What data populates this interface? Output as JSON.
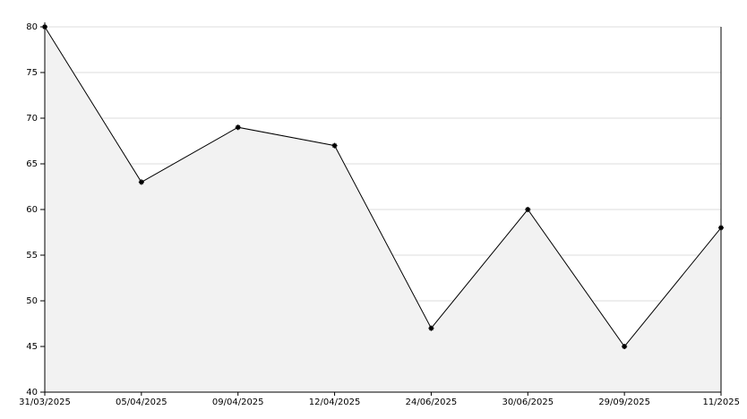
{
  "chart_data": {
    "type": "area",
    "categories": [
      "31/03/2025",
      "05/04/2025",
      "09/04/2025",
      "12/04/2025",
      "24/06/2025",
      "30/06/2025",
      "29/09/2025",
      "11/2025"
    ],
    "values": [
      80,
      63,
      69,
      67,
      47,
      60,
      45,
      58
    ],
    "color": "#000000",
    "fill": "#f2f2f2",
    "ylim": [
      40,
      80
    ],
    "yticks": [
      40,
      45,
      50,
      55,
      60,
      65,
      70,
      75,
      80
    ],
    "grid": true
  }
}
